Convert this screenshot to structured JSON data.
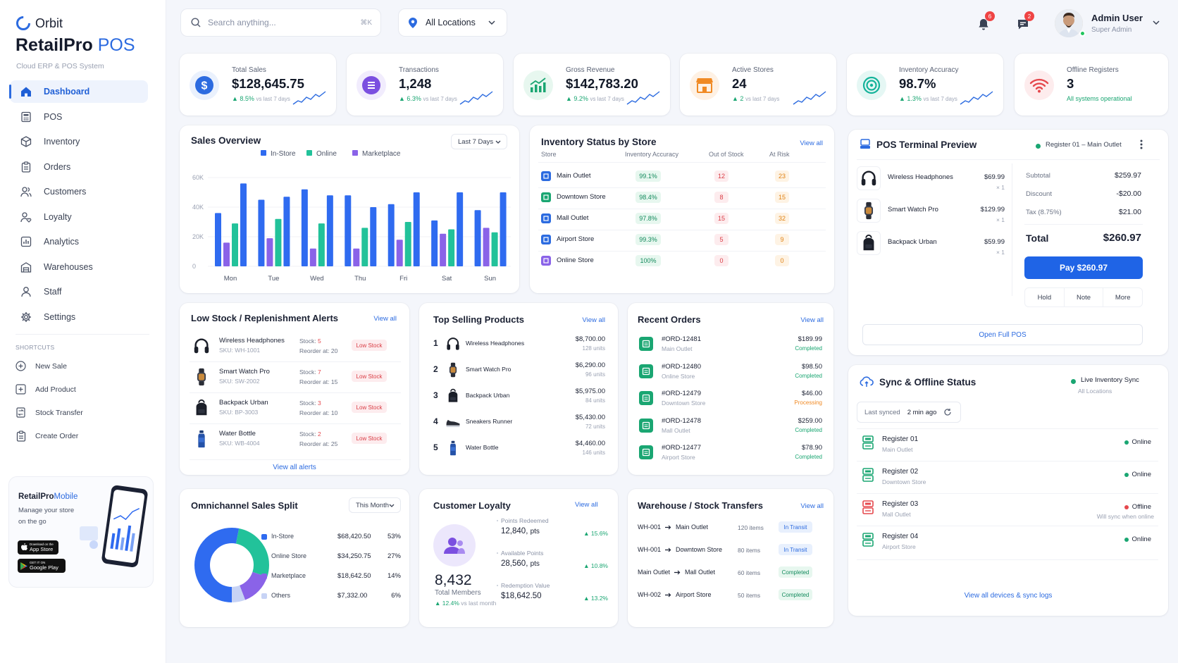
{
  "brand": {
    "name_top": "Orbit",
    "name_main": "RetailPro",
    "name_accent": "POS",
    "tagline": "Cloud ERP & POS System",
    "accent_color": "#2c6be0"
  },
  "nav": [
    {
      "label": "Dashboard",
      "icon": "home-icon",
      "active": true
    },
    {
      "label": "POS",
      "icon": "pos-icon"
    },
    {
      "label": "Inventory",
      "icon": "box-icon"
    },
    {
      "label": "Orders",
      "icon": "clipboard-icon"
    },
    {
      "label": "Customers",
      "icon": "users-icon"
    },
    {
      "label": "Loyalty",
      "icon": "loyalty-icon"
    },
    {
      "label": "Analytics",
      "icon": "analytics-icon"
    },
    {
      "label": "Warehouses",
      "icon": "warehouse-icon"
    },
    {
      "label": "Staff",
      "icon": "user-icon"
    },
    {
      "label": "Settings",
      "icon": "gear-icon"
    }
  ],
  "shortcuts_title": "SHORTCUTS",
  "shortcuts": [
    {
      "label": "New Sale",
      "icon": "plus-circle-icon"
    },
    {
      "label": "Add Product",
      "icon": "plus-square-icon"
    },
    {
      "label": "Stock Transfer",
      "icon": "transfer-icon"
    },
    {
      "label": "Create Order",
      "icon": "clipboard-icon"
    }
  ],
  "mobile_promo": {
    "title": "RetailPro",
    "title_accent": "Mobile",
    "line1": "Manage your store",
    "line2": "on the go",
    "appstore": "App Store",
    "appstore_small": "Download on the",
    "googleplay": "Google Play",
    "googleplay_small": "GET IT ON"
  },
  "topbar": {
    "search_placeholder": "Search anything...",
    "search_shortcut": "⌘K",
    "location": "All Locations",
    "notifications_count": "6",
    "messages_count": "2",
    "user_name": "Admin User",
    "user_role": "Super Admin"
  },
  "stats": [
    {
      "label": "Total Sales",
      "value": "$128,645.75",
      "change": "▲ 8.5%",
      "period": "vs last 7 days",
      "color": "#2c6be0",
      "icon": "dollar-icon"
    },
    {
      "label": "Transactions",
      "value": "1,248",
      "change": "▲ 6.3%",
      "period": "vs last 7 days",
      "color": "#7b4fe0",
      "icon": "list-icon"
    },
    {
      "label": "Gross Revenue",
      "value": "$142,783.20",
      "change": "▲ 9.2%",
      "period": "vs last 7 days",
      "color": "#1aa672",
      "icon": "chart-up-icon"
    },
    {
      "label": "Active Stores",
      "value": "24",
      "change": "▲ 2",
      "period": "vs last 7 days",
      "color": "#f08a24",
      "icon": "store-icon"
    },
    {
      "label": "Inventory Accuracy",
      "value": "98.7%",
      "change": "▲ 1.3%",
      "period": "vs last 7 days",
      "color": "#14b39a",
      "icon": "target-icon"
    },
    {
      "label": "Offline Registers",
      "value": "3",
      "change": "All systems operational",
      "period": "",
      "color": "#e5484d",
      "icon": "wifi-icon"
    }
  ],
  "sales_overview": {
    "title": "Sales Overview",
    "range": "Last 7 Days"
  },
  "chart_data": {
    "type": "bar",
    "categories": [
      "Mon",
      "Tue",
      "Wed",
      "Thu",
      "Fri",
      "Sat",
      "Sun"
    ],
    "series": [
      {
        "name": "In-Store",
        "color": "#2f6bf0",
        "values": [
          [
            36000,
            56000
          ],
          [
            45000,
            47000
          ],
          [
            52000,
            48000
          ],
          [
            48000,
            40000
          ],
          [
            42000,
            50000
          ],
          [
            31000,
            50000
          ],
          [
            38000,
            50000
          ]
        ]
      },
      {
        "name": "Online",
        "color": "#22c29a",
        "values": [
          29000,
          32000,
          29000,
          26000,
          30000,
          25000,
          23000
        ]
      },
      {
        "name": "Marketplace",
        "color": "#8a63e8",
        "values": [
          16000,
          19000,
          12000,
          12000,
          18000,
          22000,
          26000
        ]
      }
    ],
    "ylim": [
      0,
      60000
    ],
    "yticks": [
      "0",
      "20K",
      "40K",
      "60K"
    ],
    "legend": "top"
  },
  "inventory_status": {
    "title": "Inventory Status by Store",
    "view_all": "View all",
    "headers": [
      "Store",
      "Inventory Accuracy",
      "Out of Stock",
      "At Risk"
    ],
    "rows": [
      {
        "store": "Main Outlet",
        "accuracy": "99.1%",
        "oos": "12",
        "risk": "23"
      },
      {
        "store": "Downtown Store",
        "accuracy": "98.4%",
        "oos": "8",
        "risk": "15"
      },
      {
        "store": "Mall Outlet",
        "accuracy": "97.8%",
        "oos": "15",
        "risk": "32"
      },
      {
        "store": "Airport Store",
        "accuracy": "99.3%",
        "oos": "5",
        "risk": "9"
      },
      {
        "store": "Online Store",
        "accuracy": "100%",
        "oos": "0",
        "risk": "0"
      }
    ]
  },
  "pos_preview": {
    "title": "POS Terminal Preview",
    "register": "Register 01 – Main Outlet",
    "items": [
      {
        "name": "Wireless Headphones",
        "price": "$69.99",
        "qty": "× 1"
      },
      {
        "name": "Smart Watch Pro",
        "price": "$129.99",
        "qty": "× 1"
      },
      {
        "name": "Backpack Urban",
        "price": "$59.99",
        "qty": "× 1"
      }
    ],
    "subtotal_label": "Subtotal",
    "subtotal": "$259.97",
    "discount_label": "Discount",
    "discount": "-$20.00",
    "tax_label": "Tax (8.75%)",
    "tax": "$21.00",
    "total_label": "Total",
    "total": "$260.97",
    "pay_label": "Pay $260.97",
    "hold": "Hold",
    "note": "Note",
    "more": "More",
    "open_full": "Open Full POS"
  },
  "low_stock": {
    "title": "Low Stock / Replenishment Alerts",
    "view_all": "View all",
    "items": [
      {
        "name": "Wireless Headphones",
        "sku": "SKU: WH-1001",
        "stock": "5",
        "reorder": "20",
        "badge": "Low Stock"
      },
      {
        "name": "Smart Watch Pro",
        "sku": "SKU: SW-2002",
        "stock": "7",
        "reorder": "15",
        "badge": "Low Stock"
      },
      {
        "name": "Backpack Urban",
        "sku": "SKU: BP-3003",
        "stock": "3",
        "reorder": "10",
        "badge": "Low Stock"
      },
      {
        "name": "Water Bottle",
        "sku": "SKU: WB-4004",
        "stock": "2",
        "reorder": "25",
        "badge": "Low Stock"
      }
    ],
    "stock_label": "Stock:",
    "reorder_label": "Reorder at:",
    "footer": "View all alerts"
  },
  "top_selling": {
    "title": "Top Selling Products",
    "view_all": "View all",
    "items": [
      {
        "rank": "1",
        "name": "Wireless Headphones",
        "amount": "$8,700.00",
        "units": "128 units"
      },
      {
        "rank": "2",
        "name": "Smart Watch Pro",
        "amount": "$6,290.00",
        "units": "96 units"
      },
      {
        "rank": "3",
        "name": "Backpack Urban",
        "amount": "$5,975.00",
        "units": "84 units"
      },
      {
        "rank": "4",
        "name": "Sneakers Runner",
        "amount": "$5,430.00",
        "units": "72 units"
      },
      {
        "rank": "5",
        "name": "Water Bottle",
        "amount": "$4,460.00",
        "units": "146 units"
      }
    ]
  },
  "recent_orders": {
    "title": "Recent Orders",
    "view_all": "View all",
    "items": [
      {
        "id": "#ORD-12481",
        "store": "Main Outlet",
        "amount": "$189.99",
        "status": "Completed"
      },
      {
        "id": "#ORD-12480",
        "store": "Online Store",
        "amount": "$98.50",
        "status": "Completed"
      },
      {
        "id": "#ORD-12479",
        "store": "Downtown Store",
        "amount": "$46.00",
        "status": "Processing"
      },
      {
        "id": "#ORD-12478",
        "store": "Mall Outlet",
        "amount": "$259.00",
        "status": "Completed"
      },
      {
        "id": "#ORD-12477",
        "store": "Airport Store",
        "amount": "$78.90",
        "status": "Completed"
      }
    ]
  },
  "sync": {
    "title": "Sync & Offline Status",
    "live_label": "Live Inventory Sync",
    "live_sub": "All Locations",
    "last_synced_label": "Last synced",
    "last_synced": "2 min ago",
    "registers": [
      {
        "name": "Register 01",
        "store": "Main Outlet",
        "status": "Online",
        "note": ""
      },
      {
        "name": "Register 02",
        "store": "Downtown Store",
        "status": "Online",
        "note": ""
      },
      {
        "name": "Register 03",
        "store": "Mall Outlet",
        "status": "Offline",
        "note": "Will sync when online"
      },
      {
        "name": "Register 04",
        "store": "Airport Store",
        "status": "Online",
        "note": ""
      }
    ],
    "footer": "View all devices & sync logs"
  },
  "omnichannel": {
    "title": "Omnichannel Sales Split",
    "range": "This Month",
    "segments": [
      {
        "name": "In-Store",
        "amount": "$68,420.50",
        "pct": "53%",
        "value": 53,
        "color": "#2f6bf0"
      },
      {
        "name": "Online Store",
        "amount": "$34,250.75",
        "pct": "27%",
        "value": 27,
        "color": "#22c29a"
      },
      {
        "name": "Marketplace",
        "amount": "$18,642.50",
        "pct": "14%",
        "value": 14,
        "color": "#8a63e8"
      },
      {
        "name": "Others",
        "amount": "$7,332.00",
        "pct": "6%",
        "value": 6,
        "color": "#c7d3f5"
      }
    ]
  },
  "loyalty": {
    "title": "Customer Loyalty",
    "view_all": "View all",
    "members": "8,432",
    "members_label": "Total Members",
    "members_change": "▲ 12.4%",
    "members_period": "vs last month",
    "stats": [
      {
        "label": "Points Redeemed",
        "value": "12,840",
        "unit": "pts",
        "change": "▲ 15.6%"
      },
      {
        "label": "Available Points",
        "value": "28,560",
        "unit": "pts",
        "change": "▲ 10.8%"
      },
      {
        "label": "Redemption Value",
        "value": "$18,642.50",
        "unit": "",
        "change": "▲ 13.2%"
      }
    ]
  },
  "transfers": {
    "title": "Warehouse / Stock Transfers",
    "view_all": "View all",
    "items": [
      {
        "from": "WH-001",
        "to": "Main Outlet",
        "qty": "120 items",
        "status": "In Transit"
      },
      {
        "from": "WH-001",
        "to": "Downtown Store",
        "qty": "80 items",
        "status": "In Transit"
      },
      {
        "from": "Main Outlet",
        "to": "Mall Outlet",
        "qty": "60 items",
        "status": "Completed"
      },
      {
        "from": "WH-002",
        "to": "Airport Store",
        "qty": "50 items",
        "status": "Completed"
      }
    ]
  }
}
